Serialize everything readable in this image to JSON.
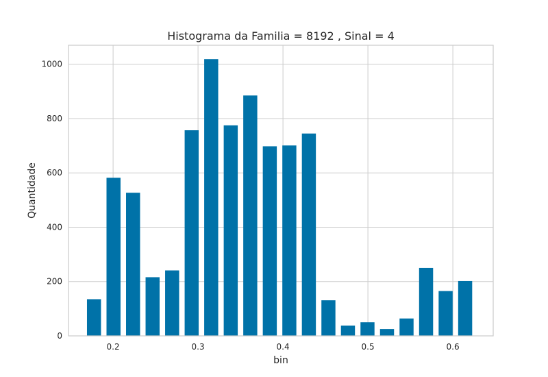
{
  "chart_data": {
    "type": "bar",
    "title": "Histograma da Familia = 8192 , Sinal = 4",
    "xlabel": "bin",
    "ylabel": "Quantidade",
    "bar_color": "#0072a8",
    "grid": true,
    "xlim": [
      0.1475,
      0.6475
    ],
    "ylim": [
      0,
      1070
    ],
    "xticks": [
      0.2,
      0.3,
      0.4,
      0.5,
      0.6
    ],
    "xtick_labels": [
      "0.2",
      "0.3",
      "0.4",
      "0.5",
      "0.6"
    ],
    "yticks": [
      0,
      200,
      400,
      600,
      800,
      1000
    ],
    "ytick_labels": [
      "0",
      "200",
      "400",
      "600",
      "800",
      "1000"
    ],
    "bar_width": 0.0165,
    "x": [
      0.1775,
      0.2005,
      0.2235,
      0.2465,
      0.2695,
      0.2925,
      0.3155,
      0.3385,
      0.3615,
      0.3845,
      0.4075,
      0.4305,
      0.4535,
      0.4765,
      0.4995,
      0.5225,
      0.5455,
      0.5685,
      0.5915,
      0.6145
    ],
    "values": [
      135,
      582,
      527,
      216,
      241,
      757,
      1019,
      775,
      885,
      698,
      701,
      745,
      131,
      38,
      50,
      25,
      64,
      250,
      165,
      202
    ]
  }
}
